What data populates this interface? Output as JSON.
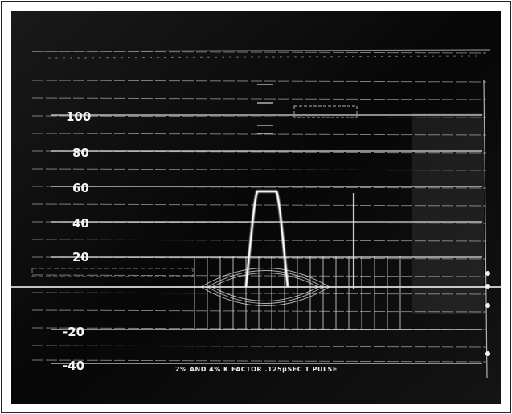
{
  "photo": {
    "paper_color": "#ffffff",
    "crt_color": "#0b0b0b",
    "trace_color": "#f2f2f2",
    "graticule_color": "#d9d9d9"
  },
  "scale": {
    "labels": [
      "100",
      "80",
      "60",
      "40",
      "20",
      "-20",
      "-40"
    ]
  },
  "caption": "2% AND 4% K FACTOR .125µSEC T PULSE"
}
